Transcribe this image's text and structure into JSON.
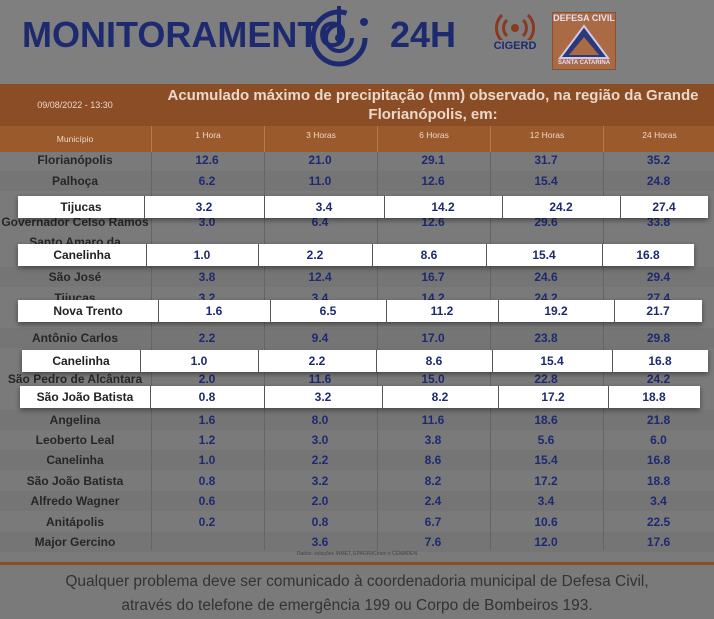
{
  "header": {
    "title": "MONITORAMENTO",
    "title_suffix": "24H",
    "logo_cigerd": "CIGERD",
    "logo_defesa_civil": "DEFESA CIVIL",
    "logo_defesa_civil_sub": "SANTA CATARINA"
  },
  "table": {
    "date": "09/08/2022 - 13:30",
    "caption": "Acumulado máximo de precipitação (mm) observado, na região da Grande Florianópolis, em:",
    "columns": [
      "Município",
      "1 Hora",
      "3 Horas",
      "6 Horas",
      "12 Horas",
      "24 Horas"
    ],
    "sources": "Dados: estações INMET, EPAGRI/Ciram e CEMADEN",
    "rows": [
      {
        "name": "Florianópolis",
        "v": [
          "12.6",
          "21.0",
          "29.1",
          "31.7",
          "35.2"
        ]
      },
      {
        "name": "Palhoça",
        "v": [
          "6.2",
          "11.0",
          "12.6",
          "15.4",
          "24.8"
        ]
      },
      {
        "name": "Governador Celso Ramos",
        "v": [
          "3.0",
          "6.4",
          "12.6",
          "29.6",
          "33.8"
        ]
      },
      {
        "name": "São José",
        "v": [
          "3.8",
          "12.4",
          "16.7",
          "24.6",
          "29.4"
        ]
      },
      {
        "name": "Tijucas",
        "v": [
          "3.2",
          "3.4",
          "14.2",
          "24.2",
          "27.4"
        ]
      },
      {
        "name": "Antônio Carlos",
        "v": [
          "2.2",
          "9.4",
          "17.0",
          "23.8",
          "29.8"
        ]
      },
      {
        "name": "São Pedro de Alcântara",
        "v": [
          "2.0",
          "11.6",
          "15.0",
          "22.8",
          "24.2"
        ]
      },
      {
        "name": "Angelina",
        "v": [
          "1.6",
          "8.0",
          "11.6",
          "18.6",
          "21.8"
        ]
      },
      {
        "name": "Leoberto Leal",
        "v": [
          "1.2",
          "3.0",
          "3.8",
          "5.6",
          "6.0"
        ]
      },
      {
        "name": "Canelinha",
        "v": [
          "1.0",
          "2.2",
          "8.6",
          "15.4",
          "16.8"
        ]
      },
      {
        "name": "São João Batista",
        "v": [
          "0.8",
          "3.2",
          "8.2",
          "17.2",
          "18.8"
        ]
      },
      {
        "name": "Alfredo Wagner",
        "v": [
          "0.6",
          "2.0",
          "2.4",
          "3.4",
          "3.4"
        ]
      },
      {
        "name": "Anitápolis",
        "v": [
          "0.2",
          "0.8",
          "6.7",
          "10.6",
          "22.5"
        ]
      },
      {
        "name": "Major Gercino",
        "v": [
          "",
          "3.6",
          "7.6",
          "12.0",
          "17.6"
        ]
      }
    ],
    "hidden_label": "Santo Amaro da"
  },
  "cards": [
    {
      "name": "Tijucas",
      "v": [
        "3.2",
        "3.4",
        "14.2",
        "24.2",
        "27.4"
      ]
    },
    {
      "name": "Canelinha",
      "v": [
        "1.0",
        "2.2",
        "8.6",
        "15.4",
        "16.8"
      ]
    },
    {
      "name": "Nova Trento",
      "v": [
        "1.6",
        "6.5",
        "11.2",
        "19.2",
        "21.7"
      ]
    },
    {
      "name": "Canelinha",
      "v": [
        "1.0",
        "2.2",
        "8.6",
        "15.4",
        "16.8"
      ]
    },
    {
      "name": "São João Batista",
      "v": [
        "0.8",
        "3.2",
        "8.2",
        "17.2",
        "18.8"
      ]
    }
  ],
  "footer": {
    "line1": "Qualquer problema deve ser comunicado à coordenadoria municipal de Defesa Civil,",
    "line2": "através do telefone de emergência 199 ou Corpo de Bombeiros 193."
  },
  "colors": {
    "brand": "#1e2a70",
    "header_brown": "#8a4d26"
  }
}
